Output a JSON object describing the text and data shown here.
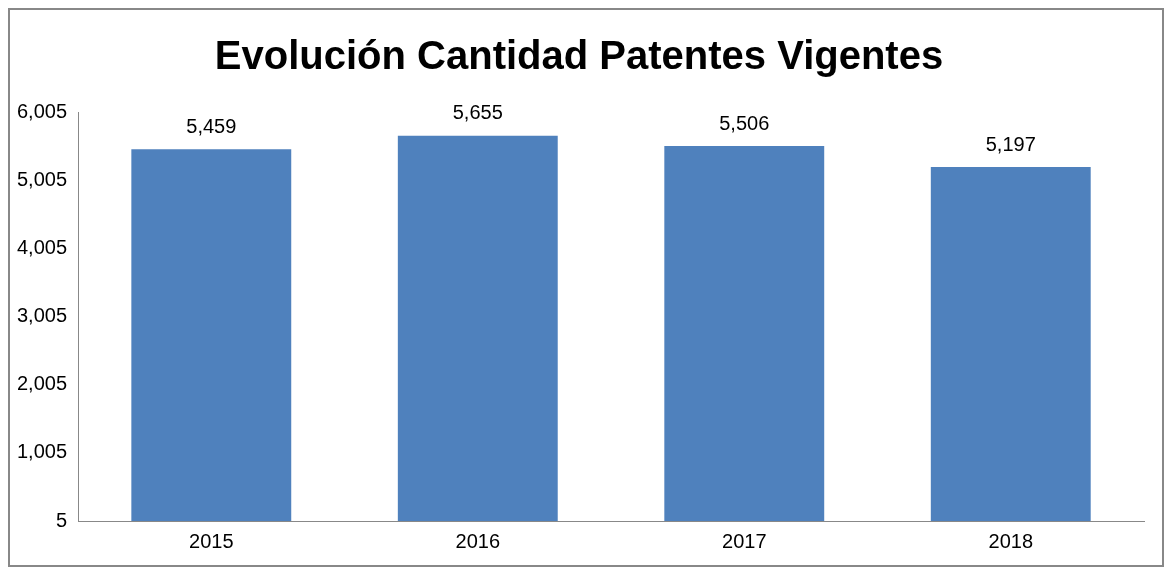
{
  "chart_data": {
    "type": "bar",
    "title": "Evolución Cantidad Patentes Vigentes",
    "categories": [
      "2015",
      "2016",
      "2017",
      "2018"
    ],
    "values": [
      5459,
      5655,
      5506,
      5197
    ],
    "value_labels": [
      "5,459",
      "5,655",
      "5,506",
      "5,197"
    ],
    "color": "#4f81bd",
    "ylim": [
      5,
      6005
    ],
    "yticks": [
      {
        "value": 5,
        "label": "5"
      },
      {
        "value": 1005,
        "label": "1,005"
      },
      {
        "value": 2005,
        "label": "2,005"
      },
      {
        "value": 3005,
        "label": "3,005"
      },
      {
        "value": 4005,
        "label": "4,005"
      },
      {
        "value": 5005,
        "label": "5,005"
      },
      {
        "value": 6005,
        "label": "6,005"
      }
    ],
    "grid": false,
    "legend": false
  }
}
